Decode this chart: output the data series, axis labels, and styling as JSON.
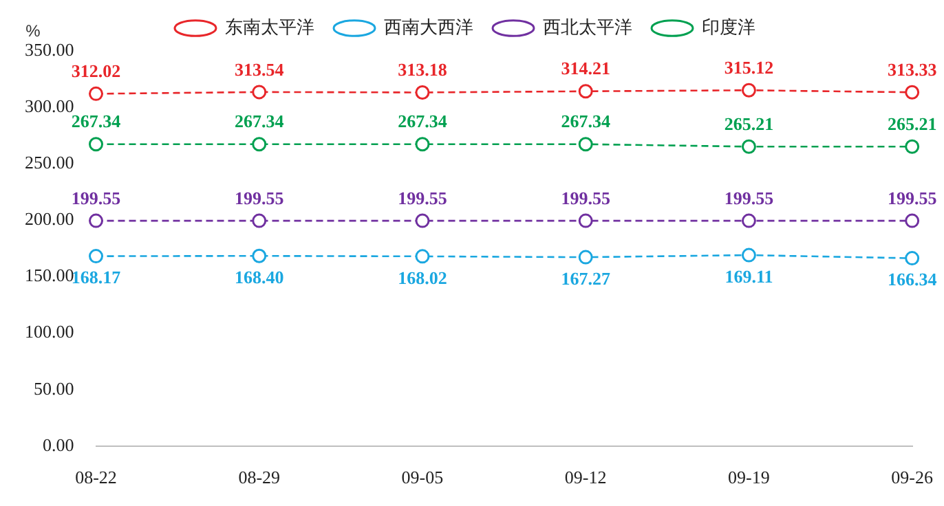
{
  "chart_data": {
    "type": "line",
    "ylabel": "%",
    "categories": [
      "08-22",
      "08-29",
      "09-05",
      "09-12",
      "09-19",
      "09-26"
    ],
    "series": [
      {
        "name": "东南太平洋",
        "color": "#e8262a",
        "values": [
          312.02,
          313.54,
          313.18,
          314.21,
          315.12,
          313.33
        ],
        "value_labels": [
          "312.02",
          "313.54",
          "313.18",
          "314.21",
          "315.12",
          "313.33"
        ]
      },
      {
        "name": "西南大西洋",
        "color": "#1aa7e0",
        "values": [
          168.17,
          168.4,
          168.02,
          167.27,
          169.11,
          166.34
        ],
        "value_labels": [
          "168.17",
          "168.40",
          "168.02",
          "167.27",
          "169.11",
          "166.34"
        ]
      },
      {
        "name": "西北太平洋",
        "color": "#7030a0",
        "values": [
          199.55,
          199.55,
          199.55,
          199.55,
          199.55,
          199.55
        ],
        "value_labels": [
          "199.55",
          "199.55",
          "199.55",
          "199.55",
          "199.55",
          "199.55"
        ]
      },
      {
        "name": "印度洋",
        "color": "#00a050",
        "values": [
          267.34,
          267.34,
          267.34,
          267.34,
          265.21,
          265.21
        ],
        "value_labels": [
          "267.34",
          "267.34",
          "267.34",
          "267.34",
          "265.21",
          "265.21"
        ]
      }
    ],
    "ylim": [
      0,
      350
    ],
    "yticks": [
      {
        "value": 0,
        "label": "0.00"
      },
      {
        "value": 50,
        "label": "50.00"
      },
      {
        "value": 100,
        "label": "100.00"
      },
      {
        "value": 150,
        "label": "150.00"
      },
      {
        "value": 200,
        "label": "200.00"
      },
      {
        "value": 250,
        "label": "250.00"
      },
      {
        "value": 300,
        "label": "300.00"
      },
      {
        "value": 350,
        "label": "350.00"
      }
    ],
    "grid": false,
    "legend": "top",
    "marker": "circle",
    "line_style": "dashed"
  }
}
